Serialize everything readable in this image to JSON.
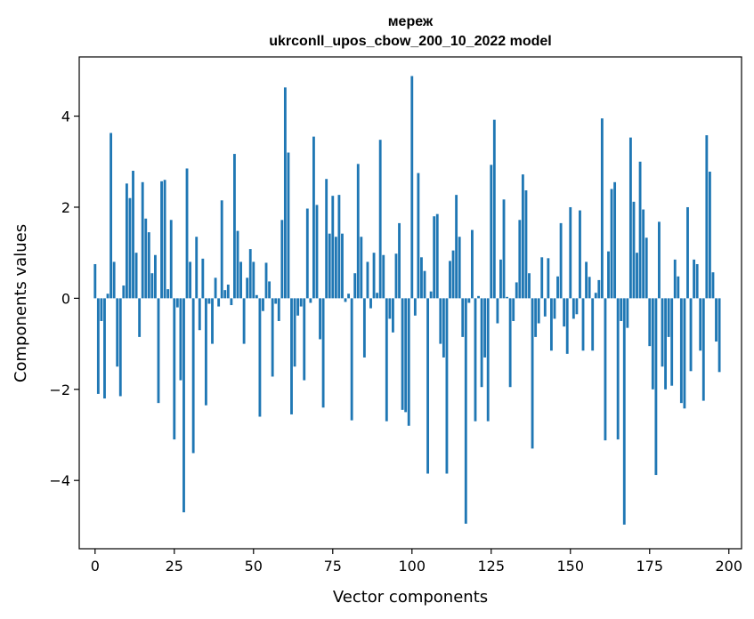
{
  "chart_data": {
    "type": "bar",
    "title_line1": "мереж",
    "title_line2": "ukrconll_upos_cbow_200_10_2022 model",
    "xlabel": "Vector components",
    "ylabel": "Components values",
    "xlim": [
      -5,
      204
    ],
    "ylim": [
      -5.5,
      5.3
    ],
    "xticks": [
      0,
      25,
      50,
      75,
      100,
      125,
      150,
      175,
      200
    ],
    "xtick_labels": [
      "0",
      "25",
      "50",
      "75",
      "100",
      "125",
      "150",
      "175",
      "200"
    ],
    "yticks": [
      -4,
      -2,
      0,
      2,
      4
    ],
    "ytick_labels": [
      "−4",
      "−2",
      "0",
      "2",
      "4"
    ],
    "grid": false,
    "color": "#1f77b4",
    "values": [
      0.75,
      -2.1,
      -0.5,
      -2.2,
      0.1,
      3.63,
      0.8,
      -1.5,
      -2.15,
      0.28,
      2.52,
      2.2,
      2.8,
      1.0,
      -0.85,
      2.55,
      1.75,
      1.45,
      0.55,
      0.95,
      -2.3,
      2.57,
      2.6,
      0.2,
      1.72,
      -3.1,
      -0.2,
      -1.8,
      -4.7,
      2.85,
      0.8,
      -3.4,
      1.35,
      -0.7,
      0.87,
      -2.35,
      -0.12,
      -1.0,
      0.45,
      -0.18,
      2.15,
      0.18,
      0.3,
      -0.15,
      3.17,
      1.48,
      0.8,
      -1.0,
      0.45,
      1.08,
      0.8,
      0.07,
      -2.6,
      -0.28,
      0.78,
      0.37,
      -1.72,
      -0.12,
      -0.5,
      1.72,
      4.63,
      3.2,
      -2.55,
      -1.5,
      -0.38,
      -0.18,
      -1.8,
      1.97,
      -0.1,
      3.55,
      2.05,
      -0.9,
      -2.4,
      2.62,
      1.42,
      2.25,
      1.35,
      2.27,
      1.42,
      -0.08,
      0.1,
      -2.68,
      0.55,
      2.95,
      1.35,
      -1.3,
      0.8,
      -0.22,
      1.0,
      0.12,
      3.48,
      0.95,
      -2.7,
      -0.45,
      -0.75,
      0.98,
      1.65,
      -2.45,
      -2.5,
      -2.8,
      4.88,
      -0.38,
      2.75,
      0.9,
      0.6,
      -3.85,
      0.15,
      1.8,
      1.85,
      -1.0,
      -1.3,
      -3.85,
      0.82,
      1.05,
      2.27,
      1.35,
      -0.85,
      -4.95,
      -0.1,
      1.5,
      -2.7,
      0.05,
      -1.95,
      -1.3,
      -2.7,
      2.93,
      3.92,
      -0.55,
      0.85,
      2.17,
      0.03,
      -1.95,
      -0.5,
      0.35,
      1.72,
      2.72,
      2.37,
      0.55,
      -3.3,
      -0.85,
      -0.55,
      0.9,
      -0.4,
      0.88,
      -1.15,
      -0.45,
      0.48,
      1.65,
      -0.62,
      -1.22,
      2.0,
      -0.45,
      -0.35,
      1.93,
      -1.15,
      0.8,
      0.47,
      -1.15,
      0.12,
      0.4,
      3.95,
      -3.12,
      1.03,
      2.4,
      2.55,
      -3.1,
      -0.5,
      -4.97,
      -0.65,
      3.53,
      2.12,
      1.0,
      3.0,
      1.95,
      1.33,
      -1.05,
      -2.0,
      -3.88,
      1.68,
      -1.5,
      -2.0,
      -0.85,
      -1.92,
      0.85,
      0.48,
      -2.3,
      -2.42,
      2.0,
      -1.6,
      0.85,
      0.75,
      -1.15,
      -2.25,
      3.58,
      2.78,
      0.57,
      -0.95,
      -1.62
    ]
  }
}
